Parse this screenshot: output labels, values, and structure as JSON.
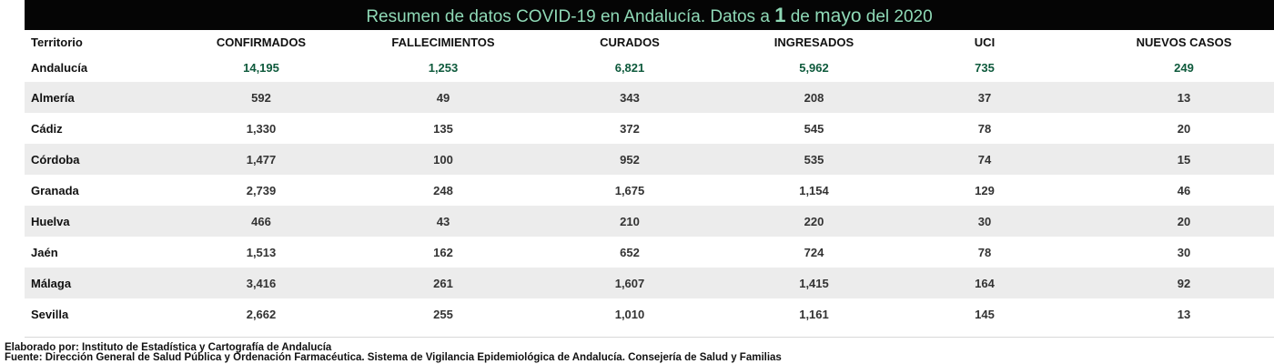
{
  "title": {
    "part1": "Resumen de datos COVID-19 en Andalucía. Datos a ",
    "day": "1",
    "part2": " de ",
    "month": "mayo",
    "part3": " del 2020"
  },
  "table": {
    "headers": [
      "Territorio",
      "CONFIRMADOS",
      "FALLECIMIENTOS",
      "CURADOS",
      "INGRESADOS",
      "UCI",
      "NUEVOS CASOS"
    ],
    "total": {
      "territorio": "Andalucía",
      "confirmados": "14,195",
      "fallecimientos": "1,253",
      "curados": "6,821",
      "ingresados": "5,962",
      "uci": "735",
      "nuevos": "249"
    },
    "rows": [
      {
        "territorio": "Almería",
        "confirmados": "592",
        "fallecimientos": "49",
        "curados": "343",
        "ingresados": "208",
        "uci": "37",
        "nuevos": "13"
      },
      {
        "territorio": "Cádiz",
        "confirmados": "1,330",
        "fallecimientos": "135",
        "curados": "372",
        "ingresados": "545",
        "uci": "78",
        "nuevos": "20"
      },
      {
        "territorio": "Córdoba",
        "confirmados": "1,477",
        "fallecimientos": "100",
        "curados": "952",
        "ingresados": "535",
        "uci": "74",
        "nuevos": "15"
      },
      {
        "territorio": "Granada",
        "confirmados": "2,739",
        "fallecimientos": "248",
        "curados": "1,675",
        "ingresados": "1,154",
        "uci": "129",
        "nuevos": "46"
      },
      {
        "territorio": "Huelva",
        "confirmados": "466",
        "fallecimientos": "43",
        "curados": "210",
        "ingresados": "220",
        "uci": "30",
        "nuevos": "20"
      },
      {
        "territorio": "Jaén",
        "confirmados": "1,513",
        "fallecimientos": "162",
        "curados": "652",
        "ingresados": "724",
        "uci": "78",
        "nuevos": "30"
      },
      {
        "territorio": "Málaga",
        "confirmados": "3,416",
        "fallecimientos": "261",
        "curados": "1,607",
        "ingresados": "1,415",
        "uci": "164",
        "nuevos": "92"
      },
      {
        "territorio": "Sevilla",
        "confirmados": "2,662",
        "fallecimientos": "255",
        "curados": "1,010",
        "ingresados": "1,161",
        "uci": "145",
        "nuevos": "13"
      }
    ]
  },
  "footer": {
    "line1": "Elaborado por: Instituto de Estadística y Cartografía de Andalucía",
    "line2": "Fuente: Dirección General de Salud Pública y Ordenación Farmacéutica. Sistema de Vigilancia Epidemiológica de Andalucía. Consejería de Salud y Familias"
  },
  "colors": {
    "title_bg": "#050505",
    "title_text": "#8fd9b6",
    "total_values": "#0e5a3c",
    "row_shade": "#ececec"
  }
}
